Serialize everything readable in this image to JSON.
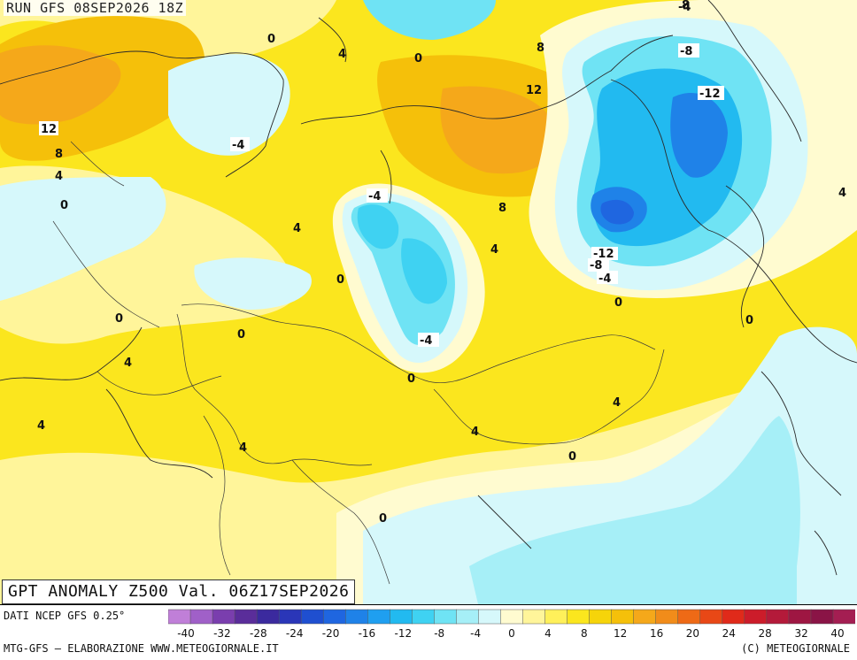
{
  "header": {
    "run_label": "RUN GFS 08SEP2026 18Z"
  },
  "map": {
    "title": "GPT ANOMALY Z500 Val. 06Z17SEP2026",
    "contour_labels": [
      "-4",
      "0",
      "4",
      "0",
      "8",
      "12",
      "8",
      "12",
      "8",
      "4",
      "0",
      "-4",
      "4",
      "0",
      "-4",
      "-8",
      "-12",
      "4",
      "-12",
      "-8",
      "-4",
      "8",
      "4",
      "0",
      "4",
      "0",
      "4",
      "0",
      "0",
      "-4",
      "0",
      "4",
      "0",
      "4",
      "4",
      "0",
      "4",
      "0",
      "4"
    ],
    "colors": {
      "ocean_bg": "#fdfbc6",
      "land_lines": "#2a2a2a",
      "positive_strong": "#f5a623",
      "positive": "#f6d40a",
      "positive_light": "#fff27a",
      "neutral": "#fffcd2",
      "negative_light": "#c9f3f7",
      "negative": "#79dcef",
      "negative_strong": "#24a8e6",
      "negative_deep": "#1f5fd4"
    }
  },
  "legend": {
    "source": "DATI NCEP GFS 0.25°",
    "tick_labels": [
      "-40",
      "-32",
      "-28",
      "-24",
      "-20",
      "-16",
      "-12",
      "-8",
      "-4",
      "0",
      "4",
      "8",
      "12",
      "16",
      "20",
      "24",
      "28",
      "32",
      "40"
    ],
    "colors": [
      "#c07fd8",
      "#a060c8",
      "#7a3eae",
      "#5a2d9a",
      "#3b2a9e",
      "#2a36b8",
      "#1f4fd0",
      "#1f66e0",
      "#1f82e8",
      "#1f9ff0",
      "#22baf0",
      "#3fd2f2",
      "#6fe3f4",
      "#a6eff7",
      "#d6f8fb",
      "#fffbd0",
      "#fff59a",
      "#fff05a",
      "#fbe61e",
      "#f6d40a",
      "#f5c00a",
      "#f5a81a",
      "#f18c1a",
      "#ee6a16",
      "#e84816",
      "#e02a1a",
      "#cc1c2a",
      "#b41a3a",
      "#9e1642",
      "#8a1446",
      "#a41e52"
    ],
    "footer_left": "MTG-GFS — ELABORAZIONE WWW.METEOGIORNALE.IT",
    "footer_right": "(C) METEOGIORNALE"
  }
}
